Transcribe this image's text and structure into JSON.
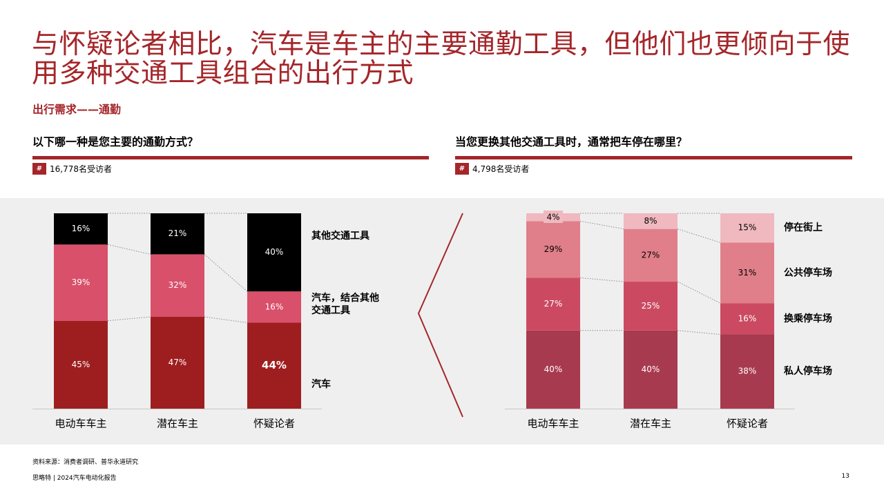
{
  "header": {
    "title": "与怀疑论者相比，汽车是车主的主要通勤工具，但他们也更倾向于使用多种交通工具组合的出行方式",
    "subtitle": "出行需求——通勤"
  },
  "left_panel": {
    "question": "以下哪一种是您主要的通勤方式？",
    "hash": "#",
    "respondents": "16,778名受访者"
  },
  "right_panel": {
    "question": "当您更换其他交通工具时，通常把车停在哪里？",
    "hash": "#",
    "respondents": "4,798名受访者"
  },
  "footer": {
    "source": "资料来源：消费者调研、普华永道研究",
    "brand": "思略特 | 2024汽车电动化报告",
    "page": "13"
  },
  "colors": {
    "accent": "#a4262a",
    "left_series": [
      "#9e1e20",
      "#d8506a",
      "#000000"
    ],
    "right_series": [
      "#a83a4f",
      "#cb4a62",
      "#e07f8a",
      "#efb9bf"
    ]
  },
  "chart_data": [
    {
      "type": "bar",
      "stacked": true,
      "categories": [
        "电动车车主",
        "潜在车主",
        "怀疑论者"
      ],
      "series": [
        {
          "name": "汽车",
          "values": [
            45,
            47,
            44
          ]
        },
        {
          "name": "汽车，结合其他交通工具",
          "values": [
            39,
            32,
            16
          ]
        },
        {
          "name": "其他交通工具",
          "values": [
            16,
            21,
            40
          ]
        }
      ],
      "legend": {
        "汽车": "汽车",
        "汽车，结合其他交通工具": [
          "汽车，结合其他",
          "交通工具"
        ],
        "其他交通工具": "其他交通工具"
      },
      "unit": "%",
      "ylim": [
        0,
        100
      ]
    },
    {
      "type": "bar",
      "stacked": true,
      "categories": [
        "电动车车主",
        "潜在车主",
        "怀疑论者"
      ],
      "series": [
        {
          "name": "私人停车场",
          "values": [
            40,
            40,
            38
          ]
        },
        {
          "name": "换乘停车场",
          "values": [
            27,
            25,
            16
          ]
        },
        {
          "name": "公共停车场",
          "values": [
            29,
            27,
            31
          ]
        },
        {
          "name": "停在街上",
          "values": [
            4,
            8,
            15
          ]
        }
      ],
      "legend": {
        "私人停车场": "私人停车场",
        "换乘停车场": "换乘停车场",
        "公共停车场": "公共停车场",
        "停在街上": "停在街上"
      },
      "unit": "%",
      "ylim": [
        0,
        100
      ]
    }
  ]
}
